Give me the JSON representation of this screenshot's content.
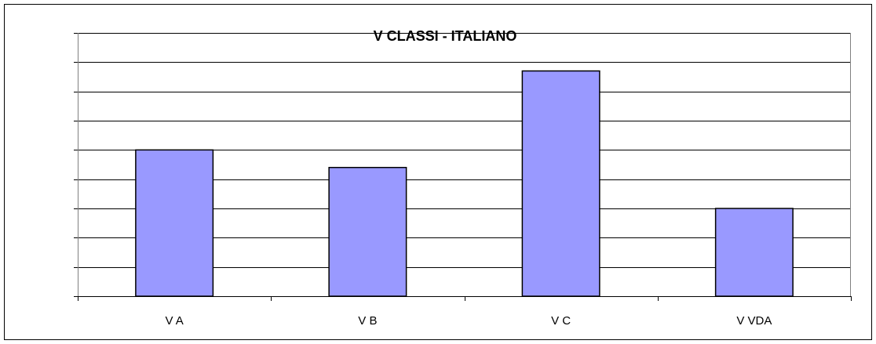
{
  "chart_data": {
    "type": "bar",
    "title": "V CLASSI - ITALIANO",
    "categories": [
      "V A",
      "V B",
      "V C",
      "V VDA"
    ],
    "values": [
      5,
      4.4,
      7.7,
      3
    ],
    "color": "#9999ff",
    "ylim": [
      0,
      9
    ],
    "yticks": [
      0,
      1,
      2,
      3,
      4,
      5,
      6,
      7,
      8,
      9
    ],
    "grid": true
  }
}
